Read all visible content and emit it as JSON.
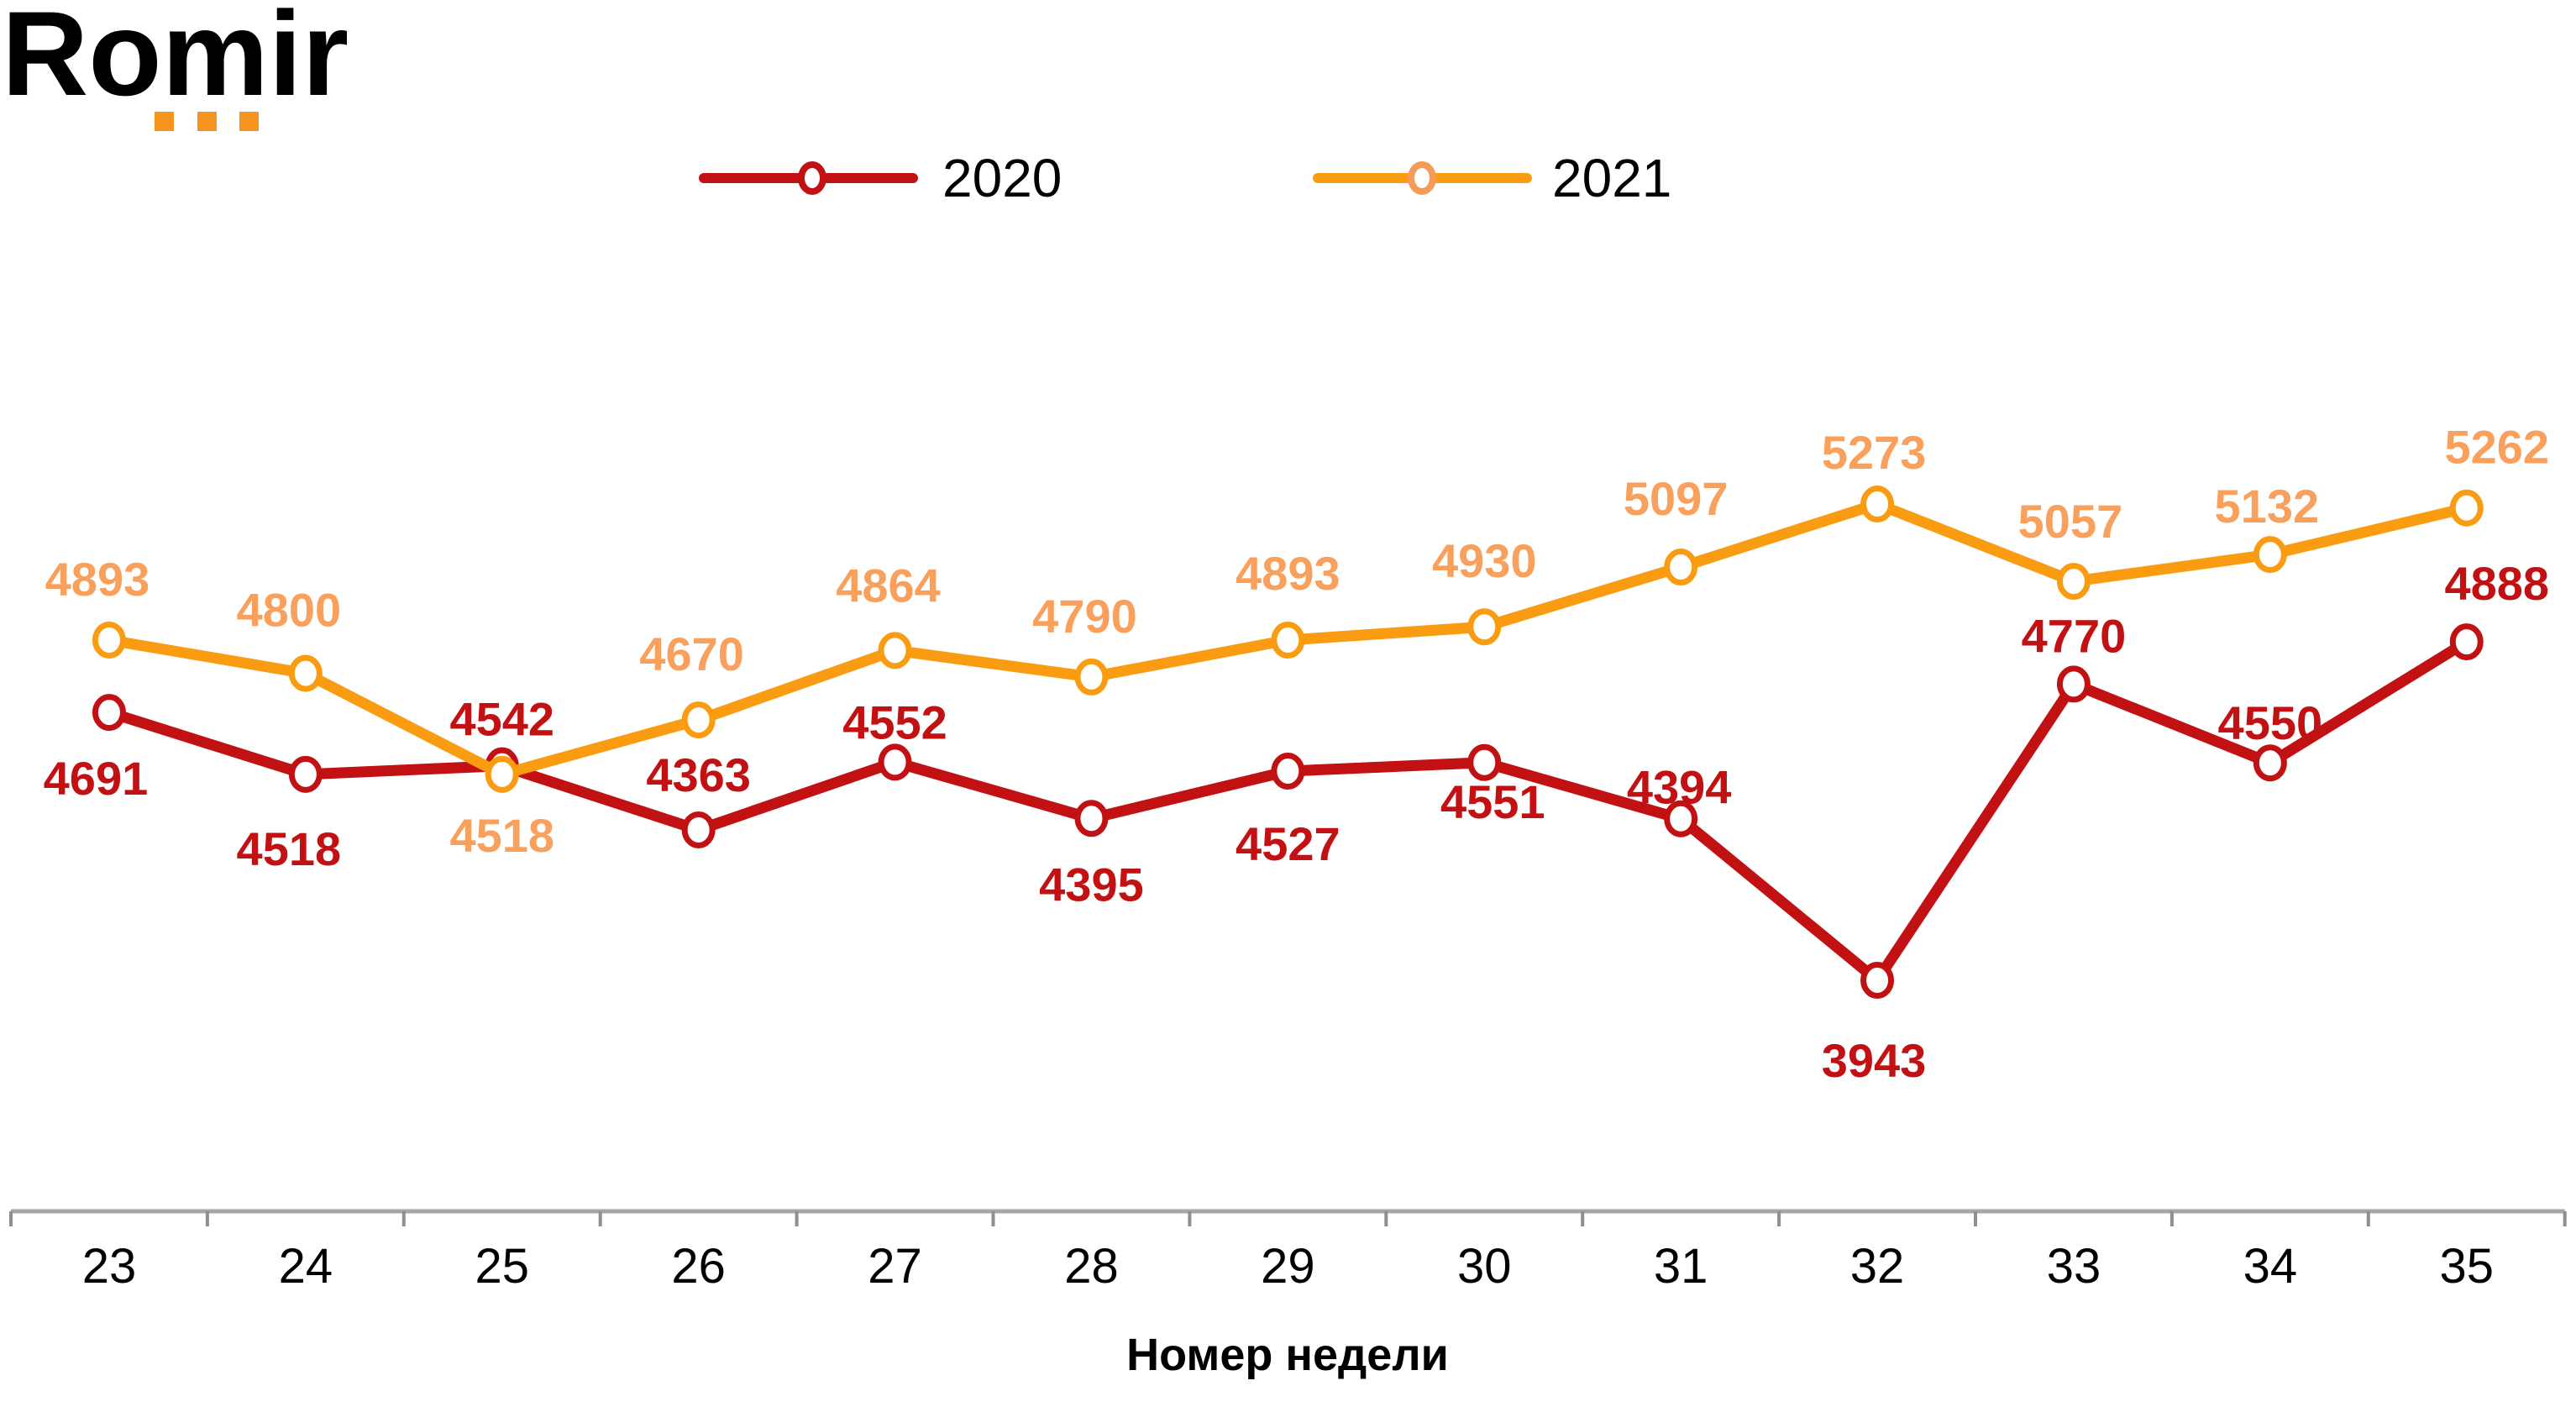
{
  "logo": {
    "text": "Romir",
    "dots_color": "#F7941D"
  },
  "legend": {
    "items": [
      {
        "label": "2020",
        "color": "#C21113",
        "marker_color": "#C21113"
      },
      {
        "label": "2021",
        "color": "#F99C12",
        "marker_color": "#F49B57"
      }
    ]
  },
  "xaxis": {
    "title": "Номер недели"
  },
  "colors": {
    "axis_line": "#A6A6A6",
    "tick": "#8F8F8F",
    "tick_label": "#000000",
    "background": "#FFFFFF"
  },
  "chart_data": {
    "type": "line",
    "title": "",
    "xlabel": "Номер недели",
    "ylabel": "",
    "categories": [
      23,
      24,
      25,
      26,
      27,
      28,
      29,
      30,
      31,
      32,
      33,
      34,
      35
    ],
    "grid": false,
    "legend_position": "top",
    "ylim": [
      3110,
      5430
    ],
    "series": [
      {
        "name": "2020",
        "color": "#C21113",
        "label_color": "#C21113",
        "values": [
          4691,
          4518,
          4542,
          4363,
          4552,
          4395,
          4527,
          4551,
          4394,
          3943,
          4770,
          4550,
          4888
        ],
        "label_side": [
          "below",
          "below",
          "above",
          "above",
          "above",
          "below",
          "below",
          "below",
          "above",
          "below",
          "above",
          "above",
          "above"
        ],
        "label_dy": [
          78,
          88,
          -56,
          -66,
          -48,
          78,
          86,
          46,
          -38,
          95,
          -58,
          -48,
          -70
        ],
        "label_dx": [
          -16,
          -20,
          0,
          0,
          0,
          0,
          0,
          10,
          -2,
          -4,
          0,
          0,
          36
        ]
      },
      {
        "name": "2021",
        "color": "#F99C12",
        "label_color": "#F8A05C",
        "values": [
          4893,
          4800,
          4518,
          4670,
          4864,
          4790,
          4893,
          4930,
          5097,
          5273,
          5057,
          5132,
          5262
        ],
        "label_side": [
          "above",
          "above",
          "below",
          "above",
          "above",
          "above",
          "above",
          "above",
          "above",
          "above",
          "above",
          "above",
          "above"
        ],
        "label_dy": [
          -73,
          -76,
          72,
          -79,
          -78,
          -73,
          -80,
          -79,
          -82,
          -62,
          -72,
          -58,
          -73
        ],
        "label_dx": [
          -14,
          -20,
          0,
          -8,
          -8,
          -8,
          0,
          0,
          -6,
          -4,
          -4,
          -4,
          36
        ]
      }
    ]
  }
}
